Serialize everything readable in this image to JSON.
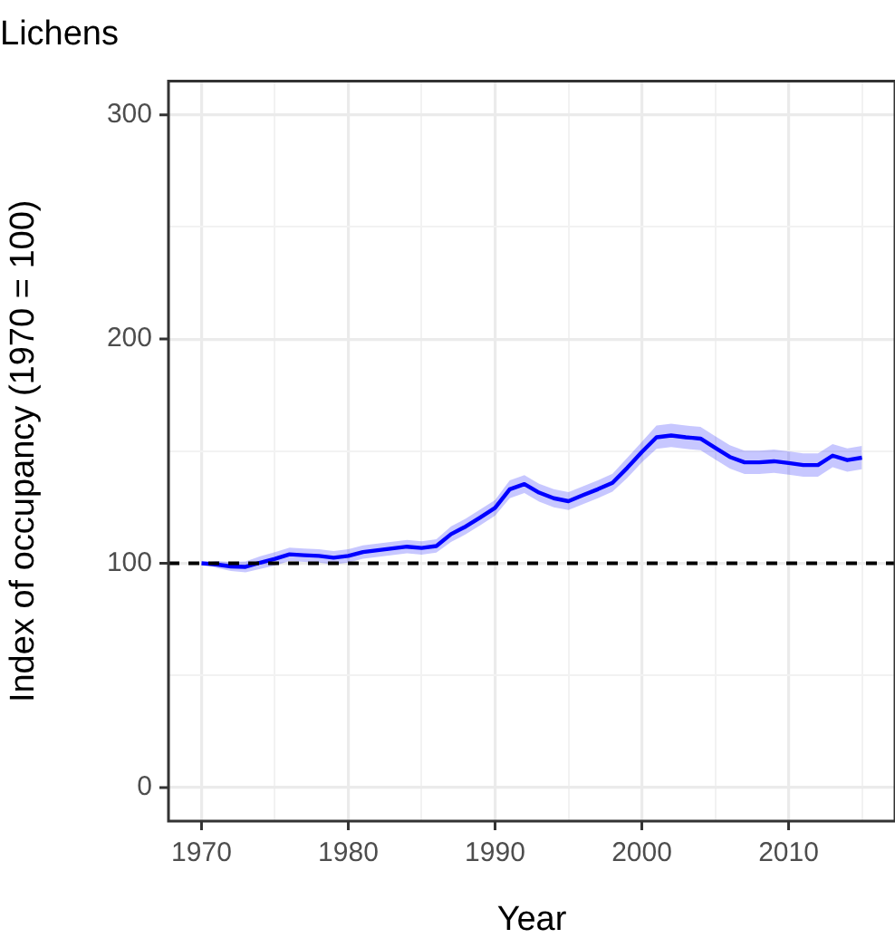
{
  "chart_data": {
    "type": "line",
    "title": "Lichens",
    "xlabel": "Year",
    "ylabel": "Index of occupancy (1970 = 100)",
    "x": [
      1970,
      1971,
      1972,
      1973,
      1974,
      1975,
      1976,
      1977,
      1978,
      1979,
      1980,
      1981,
      1982,
      1983,
      1984,
      1985,
      1986,
      1987,
      1988,
      1989,
      1990,
      1991,
      1992,
      1993,
      1994,
      1995,
      1996,
      1997,
      1998,
      1999,
      2000,
      2001,
      2002,
      2003,
      2004,
      2005,
      2006,
      2007,
      2008,
      2009,
      2010,
      2011,
      2012,
      2013,
      2014,
      2015
    ],
    "series": [
      {
        "color": "#0000ff",
        "values": [
          100,
          99.5,
          98.6,
          98.4,
          100.3,
          102,
          104,
          103.6,
          103.3,
          102.5,
          103.3,
          105,
          105.8,
          106.6,
          107.4,
          106.8,
          107.7,
          113,
          116.4,
          120.5,
          124.7,
          133,
          135.3,
          131.5,
          129,
          127.7,
          130.4,
          133,
          135.9,
          142.5,
          149.6,
          156.2,
          157,
          156.2,
          155.6,
          151.5,
          147.4,
          145,
          145,
          145.5,
          144.7,
          143.8,
          143.8,
          148,
          146,
          147.1
        ],
        "lower": [
          100,
          98,
          96.6,
          96,
          97.5,
          99,
          101,
          100.6,
          100.3,
          99.5,
          100.3,
          102,
          102.8,
          103.6,
          104.4,
          103.8,
          104.7,
          109.5,
          112.9,
          117,
          121.2,
          129,
          131.3,
          127.5,
          125,
          123.7,
          126.4,
          129,
          131.9,
          138,
          145,
          151,
          151.8,
          151,
          150.4,
          146.3,
          142.2,
          139.8,
          139.8,
          140.3,
          139.5,
          138.6,
          138.6,
          142.8,
          140.8,
          141.9
        ],
        "upper": [
          100,
          101,
          100.6,
          100.8,
          103.1,
          105,
          107,
          106.6,
          106.3,
          105.5,
          106.3,
          108,
          108.8,
          109.6,
          110.4,
          109.8,
          110.7,
          116.5,
          119.9,
          124,
          128.2,
          137,
          139.3,
          135.5,
          133,
          131.7,
          134.4,
          137,
          139.9,
          147,
          154.2,
          161.4,
          162.2,
          161.4,
          160.8,
          156.7,
          152.6,
          150.2,
          150.2,
          150.7,
          149.9,
          149,
          149,
          153.2,
          151.2,
          152.3
        ]
      }
    ],
    "xlim": [
      1967.75,
      2017.25
    ],
    "xticks": [
      1970,
      {
        "value": 1975,
        "label": null
      },
      1980,
      {
        "value": 1985,
        "label": null
      },
      1990,
      {
        "value": 1995,
        "label": null
      },
      2000,
      {
        "value": 2005,
        "label": null
      },
      2010,
      {
        "value": 2015,
        "label": null
      }
    ],
    "ylim": [
      -15,
      315
    ],
    "yticks": [
      0,
      {
        "value": 50,
        "label": null
      },
      100,
      {
        "value": 150,
        "label": null
      },
      200,
      {
        "value": 250,
        "label": null
      },
      300
    ],
    "ref_lines": [
      {
        "axis": "y",
        "value": 100,
        "color": "#000000",
        "line_style": "dashed"
      }
    ],
    "grid": true,
    "legend": false,
    "marker": "none",
    "line_style": "solid"
  }
}
